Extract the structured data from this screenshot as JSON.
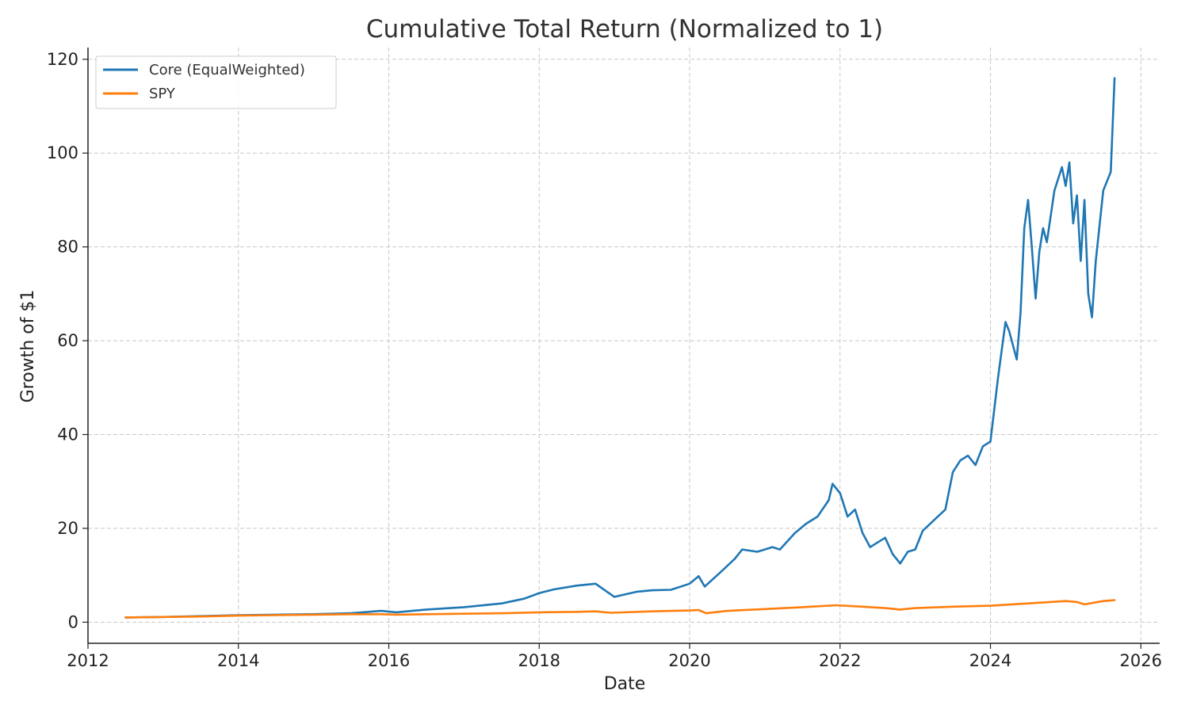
{
  "chart_data": {
    "type": "line",
    "title": "Cumulative Total Return (Normalized to 1)",
    "xlabel": "Date",
    "ylabel": "Growth of $1",
    "xlim": [
      2012.0,
      2026.25
    ],
    "ylim": [
      -4.5,
      122.5
    ],
    "xticks": [
      2012,
      2014,
      2016,
      2018,
      2020,
      2022,
      2024,
      2026
    ],
    "xtick_labels": [
      "2012",
      "2014",
      "2016",
      "2018",
      "2020",
      "2022",
      "2024",
      "2026"
    ],
    "yticks": [
      0,
      20,
      40,
      60,
      80,
      100,
      120
    ],
    "ytick_labels": [
      "0",
      "20",
      "40",
      "60",
      "80",
      "100",
      "120"
    ],
    "grid": true,
    "legend_position": "top-left",
    "series": [
      {
        "name": "Core (EqualWeighted)",
        "color": "#1f77b4",
        "x": [
          2012.5,
          2013.0,
          2013.5,
          2014.0,
          2014.5,
          2015.0,
          2015.5,
          2015.9,
          2016.1,
          2016.5,
          2017.0,
          2017.5,
          2017.8,
          2018.0,
          2018.2,
          2018.5,
          2018.75,
          2018.9,
          2019.0,
          2019.3,
          2019.5,
          2019.75,
          2020.0,
          2020.12,
          2020.2,
          2020.4,
          2020.6,
          2020.7,
          2020.9,
          2021.1,
          2021.2,
          2021.4,
          2021.55,
          2021.7,
          2021.85,
          2021.9,
          2022.0,
          2022.1,
          2022.2,
          2022.3,
          2022.4,
          2022.5,
          2022.6,
          2022.7,
          2022.8,
          2022.9,
          2023.0,
          2023.1,
          2023.3,
          2023.4,
          2023.5,
          2023.6,
          2023.7,
          2023.8,
          2023.9,
          2024.0,
          2024.1,
          2024.2,
          2024.25,
          2024.35,
          2024.4,
          2024.45,
          2024.5,
          2024.55,
          2024.6,
          2024.65,
          2024.7,
          2024.75,
          2024.85,
          2024.95,
          2025.0,
          2025.05,
          2025.1,
          2025.15,
          2025.2,
          2025.25,
          2025.3,
          2025.35,
          2025.4,
          2025.5,
          2025.6,
          2025.65
        ],
        "y": [
          1.0,
          1.1,
          1.3,
          1.5,
          1.6,
          1.7,
          1.9,
          2.4,
          2.1,
          2.7,
          3.2,
          4.0,
          5.0,
          6.2,
          7.0,
          7.8,
          8.2,
          6.5,
          5.4,
          6.5,
          6.8,
          6.9,
          8.2,
          9.8,
          7.6,
          10.5,
          13.5,
          15.5,
          15.0,
          16.0,
          15.5,
          19.0,
          21.0,
          22.5,
          26.0,
          29.5,
          27.5,
          22.5,
          24.0,
          19.0,
          16.0,
          17.0,
          18.0,
          14.5,
          12.5,
          15.0,
          15.5,
          19.5,
          22.5,
          24.0,
          32.0,
          34.5,
          35.5,
          33.5,
          37.5,
          38.5,
          52.0,
          64.0,
          62.0,
          56.0,
          66.0,
          84.0,
          90.0,
          80.0,
          69.0,
          79.0,
          84.0,
          81.0,
          92.0,
          97.0,
          93.0,
          98.0,
          85.0,
          91.0,
          77.0,
          90.0,
          70.0,
          65.0,
          77.0,
          92.0,
          96.0,
          116.0
        ]
      },
      {
        "name": "SPY",
        "color": "#ff7f0e",
        "x": [
          2012.5,
          2013.0,
          2013.5,
          2014.0,
          2014.5,
          2015.0,
          2015.5,
          2015.9,
          2016.1,
          2016.5,
          2017.0,
          2017.5,
          2018.0,
          2018.5,
          2018.75,
          2018.95,
          2019.5,
          2020.0,
          2020.12,
          2020.22,
          2020.5,
          2021.0,
          2021.5,
          2021.95,
          2022.3,
          2022.6,
          2022.8,
          2023.0,
          2023.5,
          2024.0,
          2024.5,
          2025.0,
          2025.15,
          2025.25,
          2025.5,
          2025.65
        ],
        "y": [
          1.0,
          1.1,
          1.2,
          1.4,
          1.5,
          1.6,
          1.7,
          1.7,
          1.6,
          1.7,
          1.8,
          1.9,
          2.1,
          2.2,
          2.3,
          2.0,
          2.3,
          2.5,
          2.6,
          1.9,
          2.4,
          2.8,
          3.2,
          3.6,
          3.3,
          3.0,
          2.7,
          3.0,
          3.3,
          3.5,
          4.0,
          4.5,
          4.3,
          3.8,
          4.5,
          4.7
        ]
      }
    ]
  }
}
